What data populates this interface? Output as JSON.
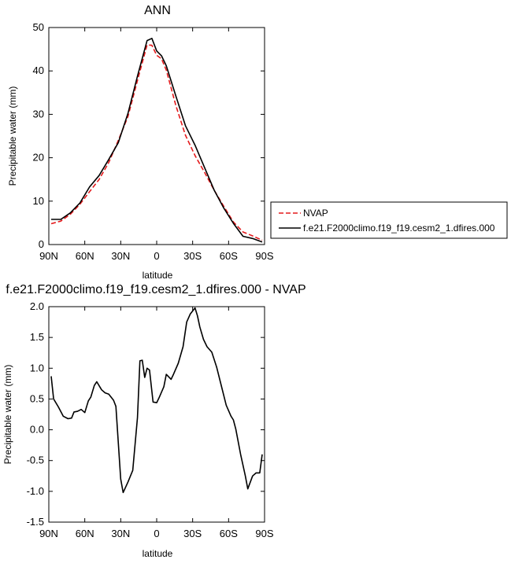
{
  "chart_data": [
    {
      "type": "line",
      "title": "ANN",
      "xlabel": "latitude",
      "ylabel": "Precipitable water (mm)",
      "xlim": [
        90,
        -90
      ],
      "ylim": [
        0,
        50
      ],
      "xticks": [
        90,
        60,
        30,
        0,
        -30,
        -60,
        -90
      ],
      "xtick_labels": [
        "90N",
        "60N",
        "30N",
        "0",
        "30S",
        "60S",
        "90S"
      ],
      "yticks": [
        0,
        10,
        20,
        30,
        40,
        50
      ],
      "ytick_labels": [
        "0",
        "10",
        "20",
        "30",
        "40",
        "50"
      ],
      "grid": false,
      "legend_position": "right",
      "series": [
        {
          "name": "NVAP",
          "color": "#e41a1c",
          "dash": "dashed",
          "x": [
            88,
            80,
            72,
            64,
            56,
            48,
            40,
            32,
            24,
            16,
            8,
            4,
            0,
            -4,
            -8,
            -16,
            -24,
            -32,
            -40,
            -48,
            -56,
            -64,
            -72,
            -80,
            -88
          ],
          "y": [
            4.8,
            5.4,
            7.0,
            9.3,
            12.2,
            15.0,
            18.9,
            24.0,
            29.5,
            37.8,
            46.0,
            45.9,
            43.6,
            42.8,
            40.2,
            32.0,
            25.2,
            20.5,
            16.6,
            12.5,
            8.8,
            5.2,
            2.9,
            2.0,
            1.0
          ]
        },
        {
          "name": "f.e21.F2000climo.f19_f19.cesm2_1.dfires.000",
          "color": "#000000",
          "dash": "solid",
          "x": [
            88,
            80,
            72,
            64,
            56,
            48,
            40,
            32,
            24,
            16,
            8,
            4,
            0,
            -4,
            -8,
            -16,
            -24,
            -32,
            -40,
            -48,
            -56,
            -64,
            -72,
            -80,
            -88
          ],
          "y": [
            5.8,
            5.8,
            7.3,
            9.6,
            13.3,
            15.9,
            19.6,
            23.5,
            30.2,
            38.8,
            47.0,
            47.5,
            44.6,
            43.5,
            41.2,
            34.2,
            27.4,
            22.9,
            17.7,
            12.5,
            8.4,
            4.9,
            1.9,
            1.4,
            0.6
          ]
        }
      ]
    },
    {
      "type": "line",
      "title": "f.e21.F2000climo.f19_f19.cesm2_1.dfires.000 - NVAP",
      "xlabel": "latitude",
      "ylabel": "Precipitable water (mm)",
      "xlim": [
        90,
        -90
      ],
      "ylim": [
        -1.5,
        2.0
      ],
      "xticks": [
        90,
        60,
        30,
        0,
        -30,
        -60,
        -90
      ],
      "xtick_labels": [
        "90N",
        "60N",
        "30N",
        "0",
        "30S",
        "60S",
        "90S"
      ],
      "yticks": [
        -1.5,
        -1.0,
        -0.5,
        0.0,
        0.5,
        1.0,
        1.5,
        2.0
      ],
      "ytick_labels": [
        "-1.5",
        "-1.0",
        "-0.5",
        "0.0",
        "0.5",
        "1.0",
        "1.5",
        "2.0"
      ],
      "grid": false,
      "series": [
        {
          "color": "#000000",
          "dash": "solid",
          "x": [
            88,
            86,
            82,
            78,
            74,
            71,
            69,
            66,
            63,
            60,
            57,
            55,
            52,
            50,
            46,
            43,
            40,
            36,
            34,
            30,
            28,
            24,
            20,
            16,
            14,
            12,
            10,
            8,
            6,
            3,
            0,
            -2,
            -6,
            -8,
            -12,
            -14,
            -18,
            -22,
            -25,
            -28,
            -32,
            -34,
            -36,
            -39,
            -42,
            -46,
            -50,
            -54,
            -58,
            -62,
            -64,
            -66,
            -70,
            -74,
            -76,
            -80,
            -83,
            -86,
            -88
          ],
          "y": [
            0.87,
            0.5,
            0.37,
            0.22,
            0.18,
            0.19,
            0.29,
            0.3,
            0.33,
            0.28,
            0.47,
            0.53,
            0.72,
            0.78,
            0.65,
            0.6,
            0.58,
            0.48,
            0.38,
            -0.8,
            -1.02,
            -0.85,
            -0.66,
            0.2,
            1.12,
            1.13,
            0.85,
            1.0,
            0.97,
            0.45,
            0.44,
            0.52,
            0.7,
            0.9,
            0.82,
            0.9,
            1.08,
            1.35,
            1.75,
            1.88,
            1.98,
            1.85,
            1.67,
            1.47,
            1.35,
            1.26,
            1.02,
            0.71,
            0.4,
            0.22,
            0.16,
            0.01,
            -0.4,
            -0.75,
            -0.96,
            -0.75,
            -0.7,
            -0.7,
            -0.4
          ]
        }
      ]
    }
  ]
}
